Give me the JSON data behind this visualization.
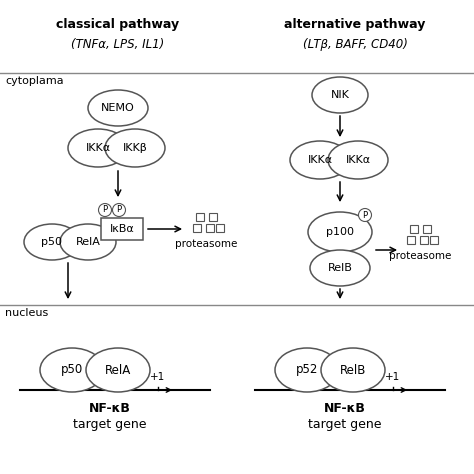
{
  "background_color": "#ffffff",
  "classical_title": "classical pathway",
  "classical_subtitle": "(TNFα, LPS, IL1)",
  "alternative_title": "alternative pathway",
  "alternative_subtitle": "(LTβ, BAFF, CD40)",
  "cytoplasm_label": "cytoplama",
  "nucleus_label": "nucleus",
  "nfkb_label1": "NF-κB",
  "nfkb_label2": "target gene",
  "proteasome_label": "proteasome"
}
